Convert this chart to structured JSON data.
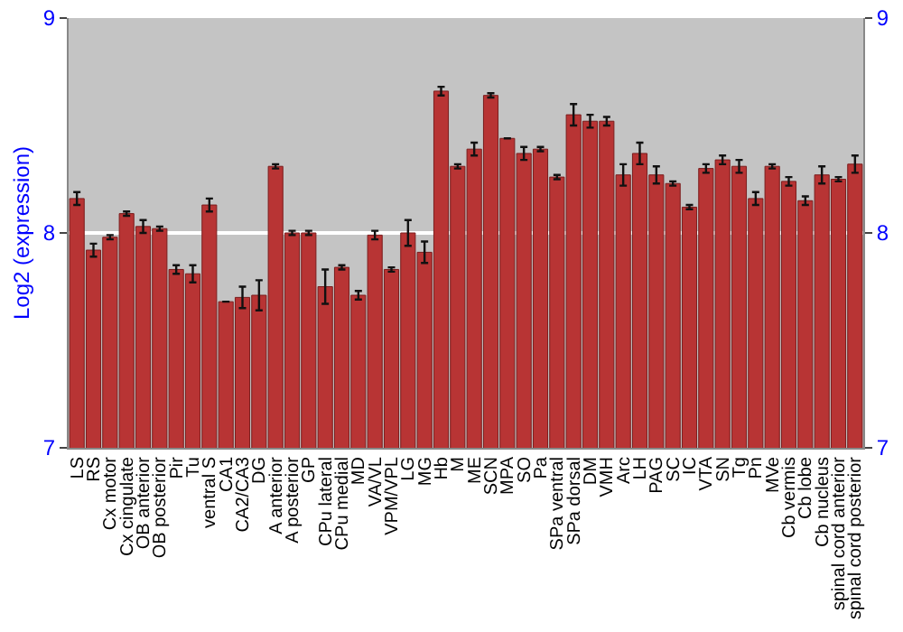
{
  "chart_data": {
    "type": "bar",
    "ylabel": "Log2 (expression)",
    "categories": [
      "LS",
      "RS",
      "Cx motor",
      "Cx cingulate",
      "OB anterior",
      "OB posterior",
      "Pir",
      "Tu",
      "ventral S",
      "CA1",
      "CA2/CA3",
      "DG",
      "A anterior",
      "A posterior",
      "GP",
      "CPu lateral",
      "CPu medial",
      "MD",
      "VA/VL",
      "VPM/VPL",
      "LG",
      "MG",
      "Hb",
      "M",
      "ME",
      "SCN",
      "MPA",
      "SO",
      "Pa",
      "SPa ventral",
      "SPa dorsal",
      "DM",
      "VMH",
      "Arc",
      "LH",
      "PAG",
      "SC",
      "IC",
      "VTA",
      "SN",
      "Tg",
      "Pn",
      "MVe",
      "Cb vermis",
      "Cb lobe",
      "Cb nucleus",
      "spinal cord anterior",
      "spinal cord posterior"
    ],
    "values": [
      8.16,
      7.92,
      7.98,
      8.09,
      8.03,
      8.02,
      7.83,
      7.81,
      8.13,
      7.68,
      7.7,
      7.71,
      8.31,
      8.0,
      8.0,
      7.75,
      7.84,
      7.71,
      7.99,
      7.83,
      8.0,
      7.91,
      8.66,
      8.31,
      8.39,
      8.64,
      8.44,
      8.37,
      8.39,
      8.26,
      8.55,
      8.52,
      8.52,
      8.27,
      8.37,
      8.27,
      8.23,
      8.12,
      8.3,
      8.34,
      8.31,
      8.16,
      8.31,
      8.24,
      8.15,
      8.27,
      8.25,
      8.32
    ],
    "errors": [
      0.03,
      0.03,
      0.01,
      0.01,
      0.03,
      0.01,
      0.02,
      0.04,
      0.03,
      0.0,
      0.05,
      0.07,
      0.01,
      0.01,
      0.01,
      0.08,
      0.01,
      0.02,
      0.02,
      0.01,
      0.06,
      0.05,
      0.02,
      0.01,
      0.03,
      0.01,
      0.0,
      0.03,
      0.01,
      0.01,
      0.05,
      0.03,
      0.02,
      0.05,
      0.05,
      0.04,
      0.01,
      0.01,
      0.02,
      0.02,
      0.03,
      0.03,
      0.01,
      0.02,
      0.02,
      0.04,
      0.01,
      0.04
    ],
    "color": "#b83434",
    "ylim": [
      7,
      9
    ],
    "yticks": [
      7,
      8,
      9
    ],
    "y2lim": [
      7,
      9
    ],
    "y2ticks": [
      7,
      8,
      9
    ],
    "grid": "y"
  }
}
